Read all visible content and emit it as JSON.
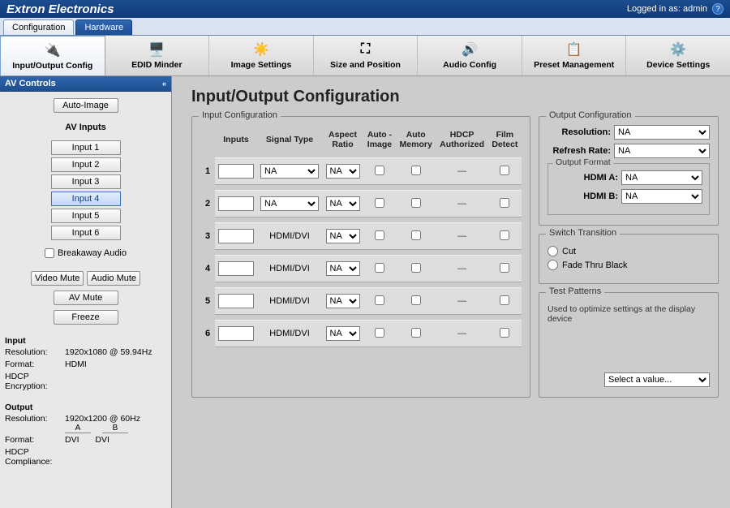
{
  "header": {
    "title": "Extron Electronics",
    "login_text": "Logged in as: admin"
  },
  "tabs": {
    "configuration": "Configuration",
    "hardware": "Hardware"
  },
  "toolbar": [
    {
      "label": "Input/Output Config"
    },
    {
      "label": "EDID Minder"
    },
    {
      "label": "Image Settings"
    },
    {
      "label": "Size and Position"
    },
    {
      "label": "Audio Config"
    },
    {
      "label": "Preset Management"
    },
    {
      "label": "Device Settings"
    }
  ],
  "sidebar": {
    "title": "AV Controls",
    "auto_image": "Auto-Image",
    "inputs_title": "AV Inputs",
    "inputs": [
      "Input 1",
      "Input 2",
      "Input 3",
      "Input 4",
      "Input 5",
      "Input 6"
    ],
    "selected_input_index": 3,
    "breakaway": "Breakaway Audio",
    "video_mute": "Video Mute",
    "audio_mute": "Audio Mute",
    "av_mute": "AV Mute",
    "freeze": "Freeze",
    "input_hdr": "Input",
    "res_label": "Resolution:",
    "in_res": "1920x1080 @ 59.94Hz",
    "fmt_label": "Format:",
    "in_fmt": "HDMI",
    "hdcp_enc": "HDCP Encryption:",
    "output_hdr": "Output",
    "out_res": "1920x1200 @ 60Hz",
    "col_a": "A",
    "col_b": "B",
    "out_fmt_a": "DVI",
    "out_fmt_b": "DVI",
    "hdcp_comp": "HDCP Compliance:"
  },
  "page": {
    "title": "Input/Output Configuration",
    "input_cfg_legend": "Input Configuration",
    "columns": [
      "Inputs",
      "Signal Type",
      "Aspect Ratio",
      "Auto - Image",
      "Auto Memory",
      "HDCP Authorized",
      "Film Detect"
    ],
    "rows": [
      {
        "n": "1",
        "sig_sel": "NA",
        "sig_type": "select",
        "asp": "NA"
      },
      {
        "n": "2",
        "sig_sel": "NA",
        "sig_type": "select",
        "asp": "NA"
      },
      {
        "n": "3",
        "sig_text": "HDMI/DVI",
        "sig_type": "text",
        "asp": "NA"
      },
      {
        "n": "4",
        "sig_text": "HDMI/DVI",
        "sig_type": "text",
        "asp": "NA"
      },
      {
        "n": "5",
        "sig_text": "HDMI/DVI",
        "sig_type": "text",
        "asp": "NA"
      },
      {
        "n": "6",
        "sig_text": "HDMI/DVI",
        "sig_type": "text",
        "asp": "NA"
      }
    ],
    "output_cfg_legend": "Output Configuration",
    "res_label": "Resolution:",
    "res_value": "NA",
    "refresh_label": "Refresh Rate:",
    "refresh_value": "NA",
    "output_format_legend": "Output Format",
    "hdmi_a_label": "HDMI A:",
    "hdmi_a_value": "NA",
    "hdmi_b_label": "HDMI B:",
    "hdmi_b_value": "NA",
    "switch_legend": "Switch Transition",
    "radio_cut": "Cut",
    "radio_fade": "Fade Thru Black",
    "test_legend": "Test Patterns",
    "test_note": "Used to optimize settings at the display device",
    "test_select": "Select a value..."
  }
}
